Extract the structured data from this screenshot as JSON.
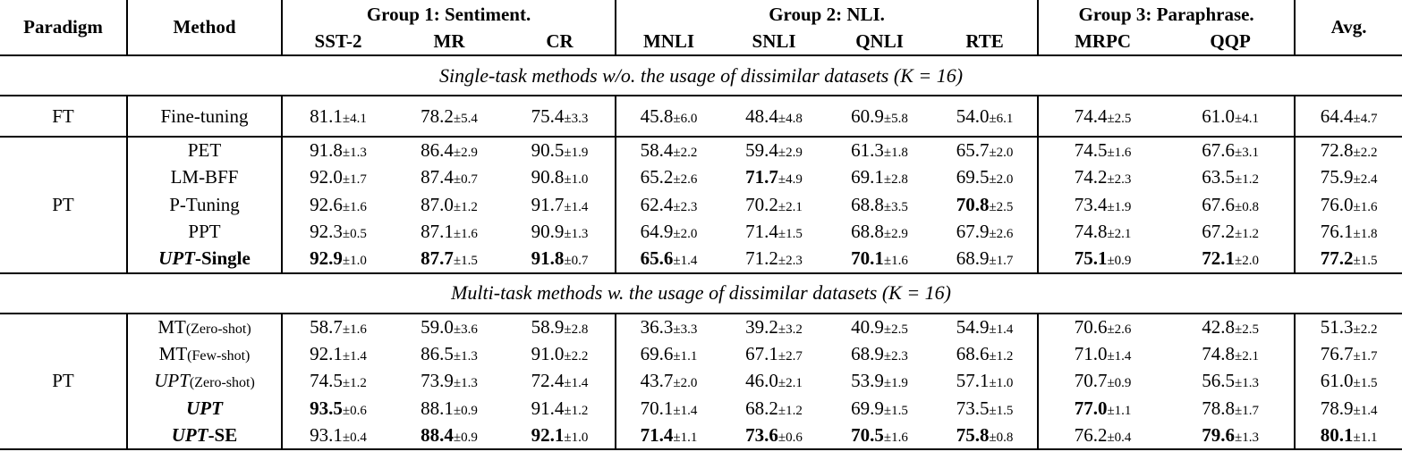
{
  "table": {
    "header": {
      "paradigm": "Paradigm",
      "method": "Method",
      "avg": "Avg.",
      "groups": [
        {
          "label": "Group 1: Sentiment.",
          "cols": [
            "SST-2",
            "MR",
            "CR"
          ]
        },
        {
          "label": "Group 2: NLI.",
          "cols": [
            "MNLI",
            "SNLI",
            "QNLI",
            "RTE"
          ]
        },
        {
          "label": "Group 3: Paraphrase.",
          "cols": [
            "MRPC",
            "QQP"
          ]
        }
      ]
    },
    "plus_minus": "±",
    "sections": [
      {
        "title": "Single-task methods w/o. the usage of dissimilar datasets (K = 16)",
        "blocks": [
          {
            "paradigm": "FT",
            "rows": [
              {
                "method": [
                  {
                    "t": "Fine-tuning",
                    "s": ""
                  }
                ],
                "scores": [
                  {
                    "v": "81.1",
                    "e": "4.1"
                  },
                  {
                    "v": "78.2",
                    "e": "5.4"
                  },
                  {
                    "v": "75.4",
                    "e": "3.3"
                  },
                  {
                    "v": "45.8",
                    "e": "6.0"
                  },
                  {
                    "v": "48.4",
                    "e": "4.8"
                  },
                  {
                    "v": "60.9",
                    "e": "5.8"
                  },
                  {
                    "v": "54.0",
                    "e": "6.1"
                  },
                  {
                    "v": "74.4",
                    "e": "2.5"
                  },
                  {
                    "v": "61.0",
                    "e": "4.1"
                  },
                  {
                    "v": "64.4",
                    "e": "4.7"
                  }
                ]
              }
            ]
          },
          {
            "paradigm": "PT",
            "rows": [
              {
                "method": [
                  {
                    "t": "PET",
                    "s": ""
                  }
                ],
                "scores": [
                  {
                    "v": "91.8",
                    "e": "1.3"
                  },
                  {
                    "v": "86.4",
                    "e": "2.9"
                  },
                  {
                    "v": "90.5",
                    "e": "1.9"
                  },
                  {
                    "v": "58.4",
                    "e": "2.2"
                  },
                  {
                    "v": "59.4",
                    "e": "2.9"
                  },
                  {
                    "v": "61.3",
                    "e": "1.8"
                  },
                  {
                    "v": "65.7",
                    "e": "2.0"
                  },
                  {
                    "v": "74.5",
                    "e": "1.6"
                  },
                  {
                    "v": "67.6",
                    "e": "3.1"
                  },
                  {
                    "v": "72.8",
                    "e": "2.2"
                  }
                ]
              },
              {
                "method": [
                  {
                    "t": "LM-BFF",
                    "s": ""
                  }
                ],
                "scores": [
                  {
                    "v": "92.0",
                    "e": "1.7"
                  },
                  {
                    "v": "87.4",
                    "e": "0.7"
                  },
                  {
                    "v": "90.8",
                    "e": "1.0"
                  },
                  {
                    "v": "65.2",
                    "e": "2.6"
                  },
                  {
                    "v": "71.7",
                    "e": "4.9",
                    "b": true
                  },
                  {
                    "v": "69.1",
                    "e": "2.8"
                  },
                  {
                    "v": "69.5",
                    "e": "2.0"
                  },
                  {
                    "v": "74.2",
                    "e": "2.3"
                  },
                  {
                    "v": "63.5",
                    "e": "1.2"
                  },
                  {
                    "v": "75.9",
                    "e": "2.4"
                  }
                ]
              },
              {
                "method": [
                  {
                    "t": "P-Tuning",
                    "s": ""
                  }
                ],
                "scores": [
                  {
                    "v": "92.6",
                    "e": "1.6"
                  },
                  {
                    "v": "87.0",
                    "e": "1.2"
                  },
                  {
                    "v": "91.7",
                    "e": "1.4"
                  },
                  {
                    "v": "62.4",
                    "e": "2.3"
                  },
                  {
                    "v": "70.2",
                    "e": "2.1"
                  },
                  {
                    "v": "68.8",
                    "e": "3.5"
                  },
                  {
                    "v": "70.8",
                    "e": "2.5",
                    "b": true
                  },
                  {
                    "v": "73.4",
                    "e": "1.9"
                  },
                  {
                    "v": "67.6",
                    "e": "0.8"
                  },
                  {
                    "v": "76.0",
                    "e": "1.6"
                  }
                ]
              },
              {
                "method": [
                  {
                    "t": "PPT",
                    "s": ""
                  }
                ],
                "scores": [
                  {
                    "v": "92.3",
                    "e": "0.5"
                  },
                  {
                    "v": "87.1",
                    "e": "1.6"
                  },
                  {
                    "v": "90.9",
                    "e": "1.3"
                  },
                  {
                    "v": "64.9",
                    "e": "2.0"
                  },
                  {
                    "v": "71.4",
                    "e": "1.5"
                  },
                  {
                    "v": "68.8",
                    "e": "2.9"
                  },
                  {
                    "v": "67.9",
                    "e": "2.6"
                  },
                  {
                    "v": "74.8",
                    "e": "2.1"
                  },
                  {
                    "v": "67.2",
                    "e": "1.2"
                  },
                  {
                    "v": "76.1",
                    "e": "1.8"
                  }
                ]
              },
              {
                "method": [
                  {
                    "t": "UPT",
                    "s": "bi"
                  },
                  {
                    "t": "-Single",
                    "s": "b"
                  }
                ],
                "scores": [
                  {
                    "v": "92.9",
                    "e": "1.0",
                    "b": true
                  },
                  {
                    "v": "87.7",
                    "e": "1.5",
                    "b": true
                  },
                  {
                    "v": "91.8",
                    "e": "0.7",
                    "b": true
                  },
                  {
                    "v": "65.6",
                    "e": "1.4",
                    "b": true
                  },
                  {
                    "v": "71.2",
                    "e": "2.3"
                  },
                  {
                    "v": "70.1",
                    "e": "1.6",
                    "b": true
                  },
                  {
                    "v": "68.9",
                    "e": "1.7"
                  },
                  {
                    "v": "75.1",
                    "e": "0.9",
                    "b": true
                  },
                  {
                    "v": "72.1",
                    "e": "2.0",
                    "b": true
                  },
                  {
                    "v": "77.2",
                    "e": "1.5",
                    "b": true
                  }
                ]
              }
            ]
          }
        ]
      },
      {
        "title": "Multi-task methods w. the usage of dissimilar datasets (K = 16)",
        "blocks": [
          {
            "paradigm": "PT",
            "rows": [
              {
                "method": [
                  {
                    "t": "MT",
                    "s": ""
                  },
                  {
                    "t": "(Zero-shot)",
                    "s": "sm"
                  }
                ],
                "scores": [
                  {
                    "v": "58.7",
                    "e": "1.6"
                  },
                  {
                    "v": "59.0",
                    "e": "3.6"
                  },
                  {
                    "v": "58.9",
                    "e": "2.8"
                  },
                  {
                    "v": "36.3",
                    "e": "3.3"
                  },
                  {
                    "v": "39.2",
                    "e": "3.2"
                  },
                  {
                    "v": "40.9",
                    "e": "2.5"
                  },
                  {
                    "v": "54.9",
                    "e": "1.4"
                  },
                  {
                    "v": "70.6",
                    "e": "2.6"
                  },
                  {
                    "v": "42.8",
                    "e": "2.5"
                  },
                  {
                    "v": "51.3",
                    "e": "2.2"
                  }
                ]
              },
              {
                "method": [
                  {
                    "t": "MT",
                    "s": ""
                  },
                  {
                    "t": "(Few-shot)",
                    "s": "sm"
                  }
                ],
                "scores": [
                  {
                    "v": "92.1",
                    "e": "1.4"
                  },
                  {
                    "v": "86.5",
                    "e": "1.3"
                  },
                  {
                    "v": "91.0",
                    "e": "2.2"
                  },
                  {
                    "v": "69.6",
                    "e": "1.1"
                  },
                  {
                    "v": "67.1",
                    "e": "2.7"
                  },
                  {
                    "v": "68.9",
                    "e": "2.3"
                  },
                  {
                    "v": "68.6",
                    "e": "1.2"
                  },
                  {
                    "v": "71.0",
                    "e": "1.4"
                  },
                  {
                    "v": "74.8",
                    "e": "2.1"
                  },
                  {
                    "v": "76.7",
                    "e": "1.7"
                  }
                ]
              },
              {
                "method": [
                  {
                    "t": "UPT",
                    "s": "i"
                  },
                  {
                    "t": "(Zero-shot)",
                    "s": "sm"
                  }
                ],
                "scores": [
                  {
                    "v": "74.5",
                    "e": "1.2"
                  },
                  {
                    "v": "73.9",
                    "e": "1.3"
                  },
                  {
                    "v": "72.4",
                    "e": "1.4"
                  },
                  {
                    "v": "43.7",
                    "e": "2.0"
                  },
                  {
                    "v": "46.0",
                    "e": "2.1"
                  },
                  {
                    "v": "53.9",
                    "e": "1.9"
                  },
                  {
                    "v": "57.1",
                    "e": "1.0"
                  },
                  {
                    "v": "70.7",
                    "e": "0.9"
                  },
                  {
                    "v": "56.5",
                    "e": "1.3"
                  },
                  {
                    "v": "61.0",
                    "e": "1.5"
                  }
                ]
              },
              {
                "method": [
                  {
                    "t": "UPT",
                    "s": "bi"
                  }
                ],
                "scores": [
                  {
                    "v": "93.5",
                    "e": "0.6",
                    "b": true
                  },
                  {
                    "v": "88.1",
                    "e": "0.9"
                  },
                  {
                    "v": "91.4",
                    "e": "1.2"
                  },
                  {
                    "v": "70.1",
                    "e": "1.4"
                  },
                  {
                    "v": "68.2",
                    "e": "1.2"
                  },
                  {
                    "v": "69.9",
                    "e": "1.5"
                  },
                  {
                    "v": "73.5",
                    "e": "1.5"
                  },
                  {
                    "v": "77.0",
                    "e": "1.1",
                    "b": true
                  },
                  {
                    "v": "78.8",
                    "e": "1.7"
                  },
                  {
                    "v": "78.9",
                    "e": "1.4"
                  }
                ]
              },
              {
                "method": [
                  {
                    "t": "UPT",
                    "s": "bi"
                  },
                  {
                    "t": "-SE",
                    "s": "b"
                  }
                ],
                "scores": [
                  {
                    "v": "93.1",
                    "e": "0.4"
                  },
                  {
                    "v": "88.4",
                    "e": "0.9",
                    "b": true
                  },
                  {
                    "v": "92.1",
                    "e": "1.0",
                    "b": true
                  },
                  {
                    "v": "71.4",
                    "e": "1.1",
                    "b": true
                  },
                  {
                    "v": "73.6",
                    "e": "0.6",
                    "b": true
                  },
                  {
                    "v": "70.5",
                    "e": "1.6",
                    "b": true
                  },
                  {
                    "v": "75.8",
                    "e": "0.8",
                    "b": true
                  },
                  {
                    "v": "76.2",
                    "e": "0.4"
                  },
                  {
                    "v": "79.6",
                    "e": "1.3",
                    "b": true
                  },
                  {
                    "v": "80.1",
                    "e": "1.1",
                    "b": true
                  }
                ]
              }
            ]
          }
        ]
      }
    ]
  }
}
